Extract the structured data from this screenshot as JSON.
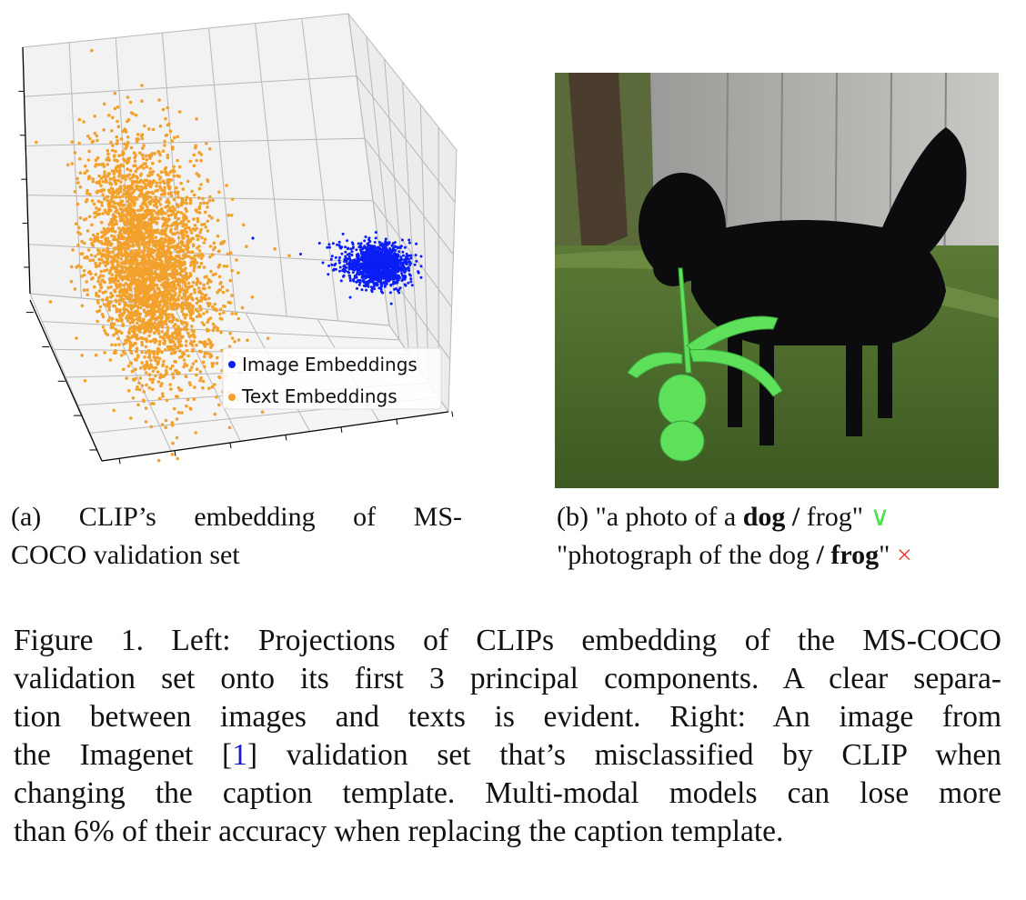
{
  "chart_data": {
    "type": "scatter",
    "projection": "3d",
    "title": "",
    "xlabel": "",
    "ylabel": "",
    "zlabel": "",
    "tick_labels": "none",
    "grid": true,
    "legend_position": "bottom-right",
    "series": [
      {
        "name": "Image Embeddings",
        "color": "#0a1ef5"
      },
      {
        "name": "Text Embeddings",
        "color": "#f2a12c"
      }
    ]
  },
  "caption_a": {
    "line1": "(a) CLIP’s embedding of MS-",
    "line2": "COCO validation set"
  },
  "caption_b": {
    "line1_prefix": "(b) \"a photo of a ",
    "line1_bold": "dog / ",
    "line1_rest": "frog\" ",
    "line1_mark": "∨",
    "line2_prefix": "\"photograph of the dog ",
    "line2_bold": "/ frog",
    "line2_rest": "\" ",
    "line2_mark": "×",
    "correct_color": "#4ee04e",
    "wrong_color": "#ee3333"
  },
  "figure_caption": {
    "lines": [
      "Figure 1. Left: Projections of CLIPs embedding of the MS-COCO",
      "validation set onto its first 3 principal components. A clear separa-",
      "tion between images and texts is evident. Right: An image from"
    ],
    "line4_a": "the Imagenet [",
    "line4_cite": "1",
    "line4_b": "] validation set that’s misclassified by CLIP when",
    "line5": "changing the caption template. Multi-modal models can lose more",
    "line6": "than 6% of their accuracy when replacing the caption template."
  }
}
